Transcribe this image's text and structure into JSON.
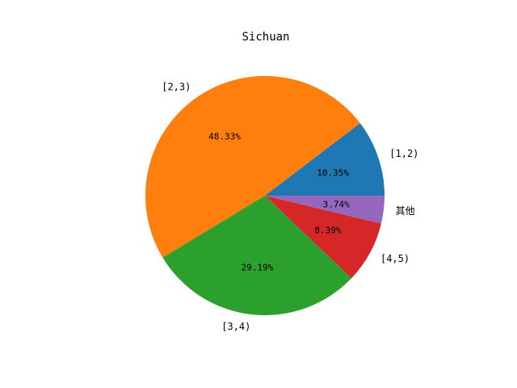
{
  "chart_data": {
    "type": "pie",
    "title": "Sichuan",
    "categories": [
      "[1,2)",
      "[2,3)",
      "[3,4)",
      "[4,5)",
      "其他"
    ],
    "values": [
      10.35,
      48.33,
      29.19,
      8.39,
      3.74
    ],
    "percent_labels": [
      "10.35%",
      "48.33%",
      "29.19%",
      "8.39%",
      "3.74%"
    ],
    "colors": [
      "#1f77b4",
      "#ff7f0e",
      "#2ca02c",
      "#d62728",
      "#9467bd"
    ],
    "start_angle_deg": 0,
    "direction": "counterclockwise"
  }
}
